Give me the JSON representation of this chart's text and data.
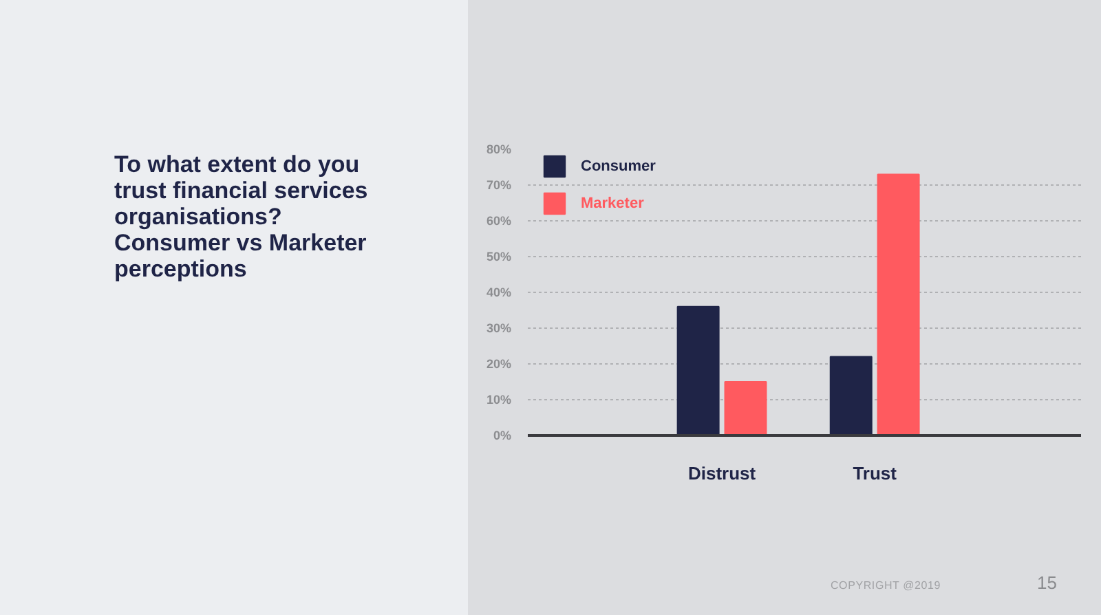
{
  "chart_data": {
    "type": "bar",
    "title": "To what extent do you trust financial services organisations? Consumer vs Marketer perceptions",
    "categories": [
      "Distrust",
      "Trust"
    ],
    "series": [
      {
        "name": "Consumer",
        "color": "#1f2447",
        "values": [
          36,
          22
        ]
      },
      {
        "name": "Marketer",
        "color": "#ff5a5f",
        "values": [
          15,
          73
        ]
      }
    ],
    "ylim": [
      0,
      80
    ],
    "yticks": [
      {
        "value": 0,
        "label": "0%"
      },
      {
        "value": 10,
        "label": "10%"
      },
      {
        "value": 20,
        "label": "20%"
      },
      {
        "value": 30,
        "label": "30%"
      },
      {
        "value": 40,
        "label": "40%"
      },
      {
        "value": 50,
        "label": "50%"
      },
      {
        "value": 60,
        "label": "60%"
      },
      {
        "value": 70,
        "label": "70%"
      },
      {
        "value": 80,
        "label": "80%"
      }
    ],
    "grid": "y",
    "legend": "top left",
    "annotations": [
      "COPYRIGHT @2019",
      "15"
    ]
  }
}
